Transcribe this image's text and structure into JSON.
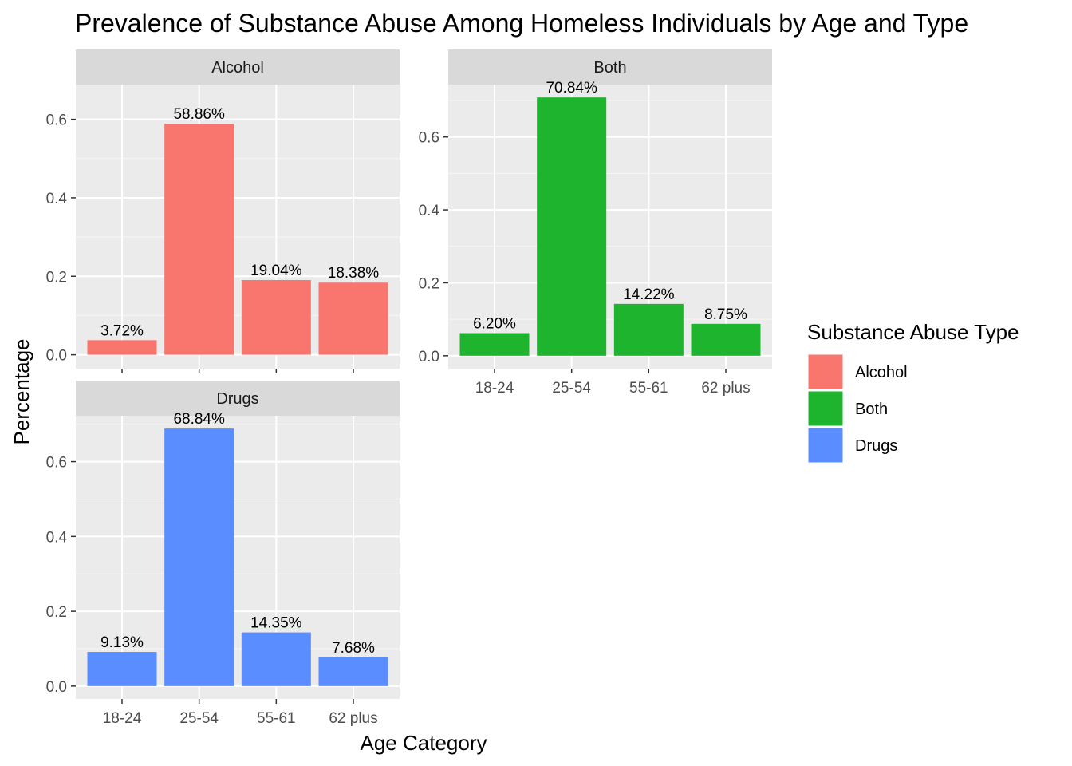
{
  "chart_data": {
    "type": "bar",
    "title": "Prevalence of Substance Abuse Among Homeless Individuals by Age and Type",
    "xlabel": "Age Category",
    "ylabel": "Percentage",
    "categories": [
      "18-24",
      "25-54",
      "55-61",
      "62 plus"
    ],
    "grid": true,
    "legend": {
      "title": "Substance Abuse Type",
      "placement": "right",
      "items": [
        {
          "label": "Alcohol",
          "color": "#F8766D"
        },
        {
          "label": "Both",
          "color": "#1EB42E"
        },
        {
          "label": "Drugs",
          "color": "#5A8DFF"
        }
      ]
    },
    "panels": [
      {
        "name": "Alcohol",
        "color": "#F8766D",
        "values": [
          0.0372,
          0.5886,
          0.1904,
          0.1838
        ],
        "labels": [
          "3.72%",
          "58.86%",
          "19.04%",
          "18.38%"
        ],
        "yticks": [
          0.0,
          0.2,
          0.4,
          0.6
        ],
        "ytick_labels": [
          "0.0",
          "0.2",
          "0.4",
          "0.6"
        ],
        "ylim": [
          -0.0354,
          0.6887
        ],
        "show_xticks": false
      },
      {
        "name": "Both",
        "color": "#1EB42E",
        "values": [
          0.062,
          0.7084,
          0.1422,
          0.0875
        ],
        "labels": [
          "6.20%",
          "70.84%",
          "14.22%",
          "8.75%"
        ],
        "yticks": [
          0.0,
          0.2,
          0.4,
          0.6
        ],
        "ytick_labels": [
          "0.0",
          "0.2",
          "0.4",
          "0.6"
        ],
        "ylim": [
          -0.0354,
          0.7438
        ],
        "show_xticks": true
      },
      {
        "name": "Drugs",
        "color": "#5A8DFF",
        "values": [
          0.0913,
          0.6884,
          0.1435,
          0.0768
        ],
        "labels": [
          "9.13%",
          "68.84%",
          "14.35%",
          "7.68%"
        ],
        "yticks": [
          0.0,
          0.2,
          0.4,
          0.6
        ],
        "ytick_labels": [
          "0.0",
          "0.2",
          "0.4",
          "0.6"
        ],
        "ylim": [
          -0.0344,
          0.7228
        ],
        "show_xticks": true
      }
    ]
  }
}
